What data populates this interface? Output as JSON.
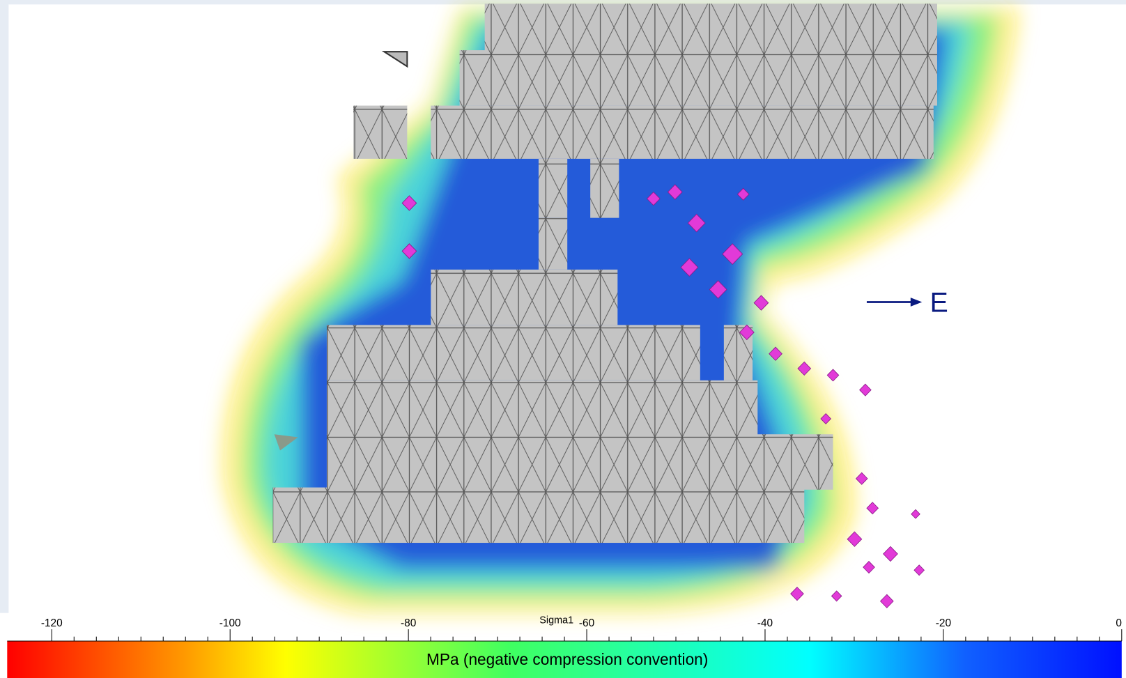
{
  "view": {
    "annotation": "E"
  },
  "colorbar": {
    "title": "Sigma1",
    "label": "MPa (negative compression convention)",
    "range": [
      -125,
      0
    ],
    "ticks": [
      -120,
      -100,
      -80,
      -60,
      -40,
      -20,
      0
    ]
  }
}
